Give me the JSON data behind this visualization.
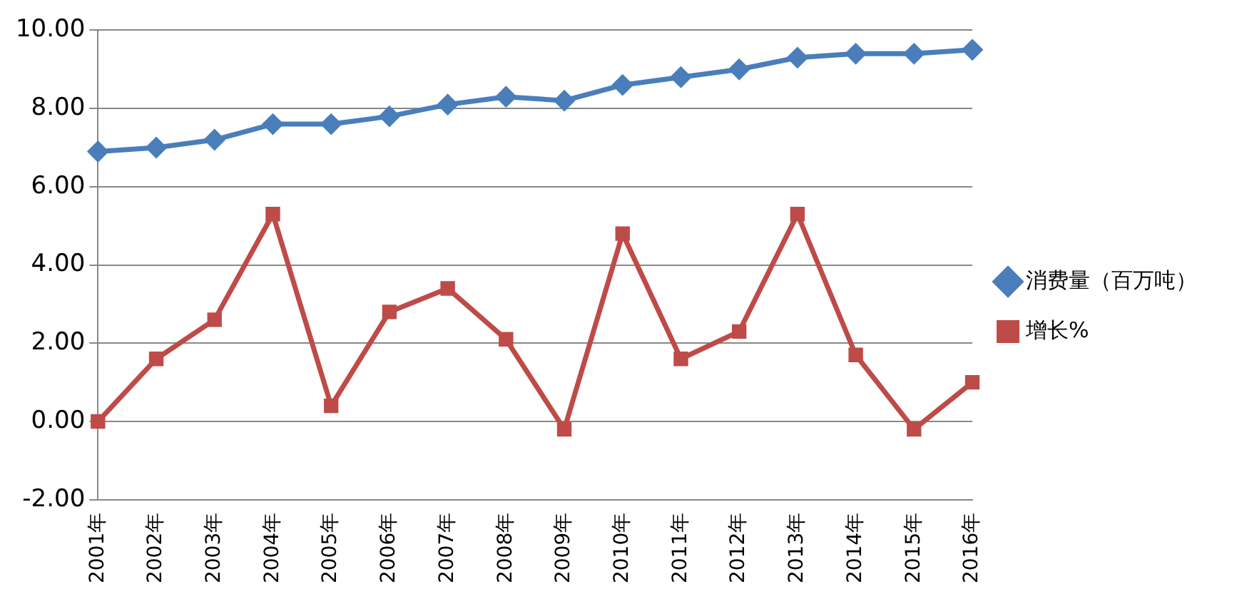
{
  "chart_data": {
    "type": "line",
    "categories": [
      "2001年",
      "2002年",
      "2003年",
      "2004年",
      "2005年",
      "2006年",
      "2007年",
      "2008年",
      "2009年",
      "2010年",
      "2011年",
      "2012年",
      "2013年",
      "2014年",
      "2015年",
      "2016年"
    ],
    "series": [
      {
        "name": "消费量（百万吨）",
        "color": "#4a7ebb",
        "marker": "diamond",
        "values": [
          6.9,
          7.0,
          7.2,
          7.6,
          7.6,
          7.8,
          8.1,
          8.3,
          8.2,
          8.6,
          8.8,
          9.0,
          9.3,
          9.4,
          9.4,
          9.5
        ]
      },
      {
        "name": "增长%",
        "color": "#be4b48",
        "marker": "square",
        "values": [
          0.0,
          1.6,
          2.6,
          5.3,
          0.4,
          2.8,
          3.4,
          2.1,
          -0.2,
          4.8,
          1.6,
          2.3,
          5.3,
          1.7,
          -0.2,
          1.0
        ]
      }
    ],
    "ylim": [
      -2,
      10
    ],
    "yticks": [
      {
        "value": -2,
        "label": "-2.00"
      },
      {
        "value": 0,
        "label": "0.00"
      },
      {
        "value": 2,
        "label": "2.00"
      },
      {
        "value": 4,
        "label": "4.00"
      },
      {
        "value": 6,
        "label": "6.00"
      },
      {
        "value": 8,
        "label": "8.00"
      },
      {
        "value": 10,
        "label": "10.00"
      }
    ],
    "grid": "y",
    "legend": "right",
    "line_style": "solid"
  }
}
